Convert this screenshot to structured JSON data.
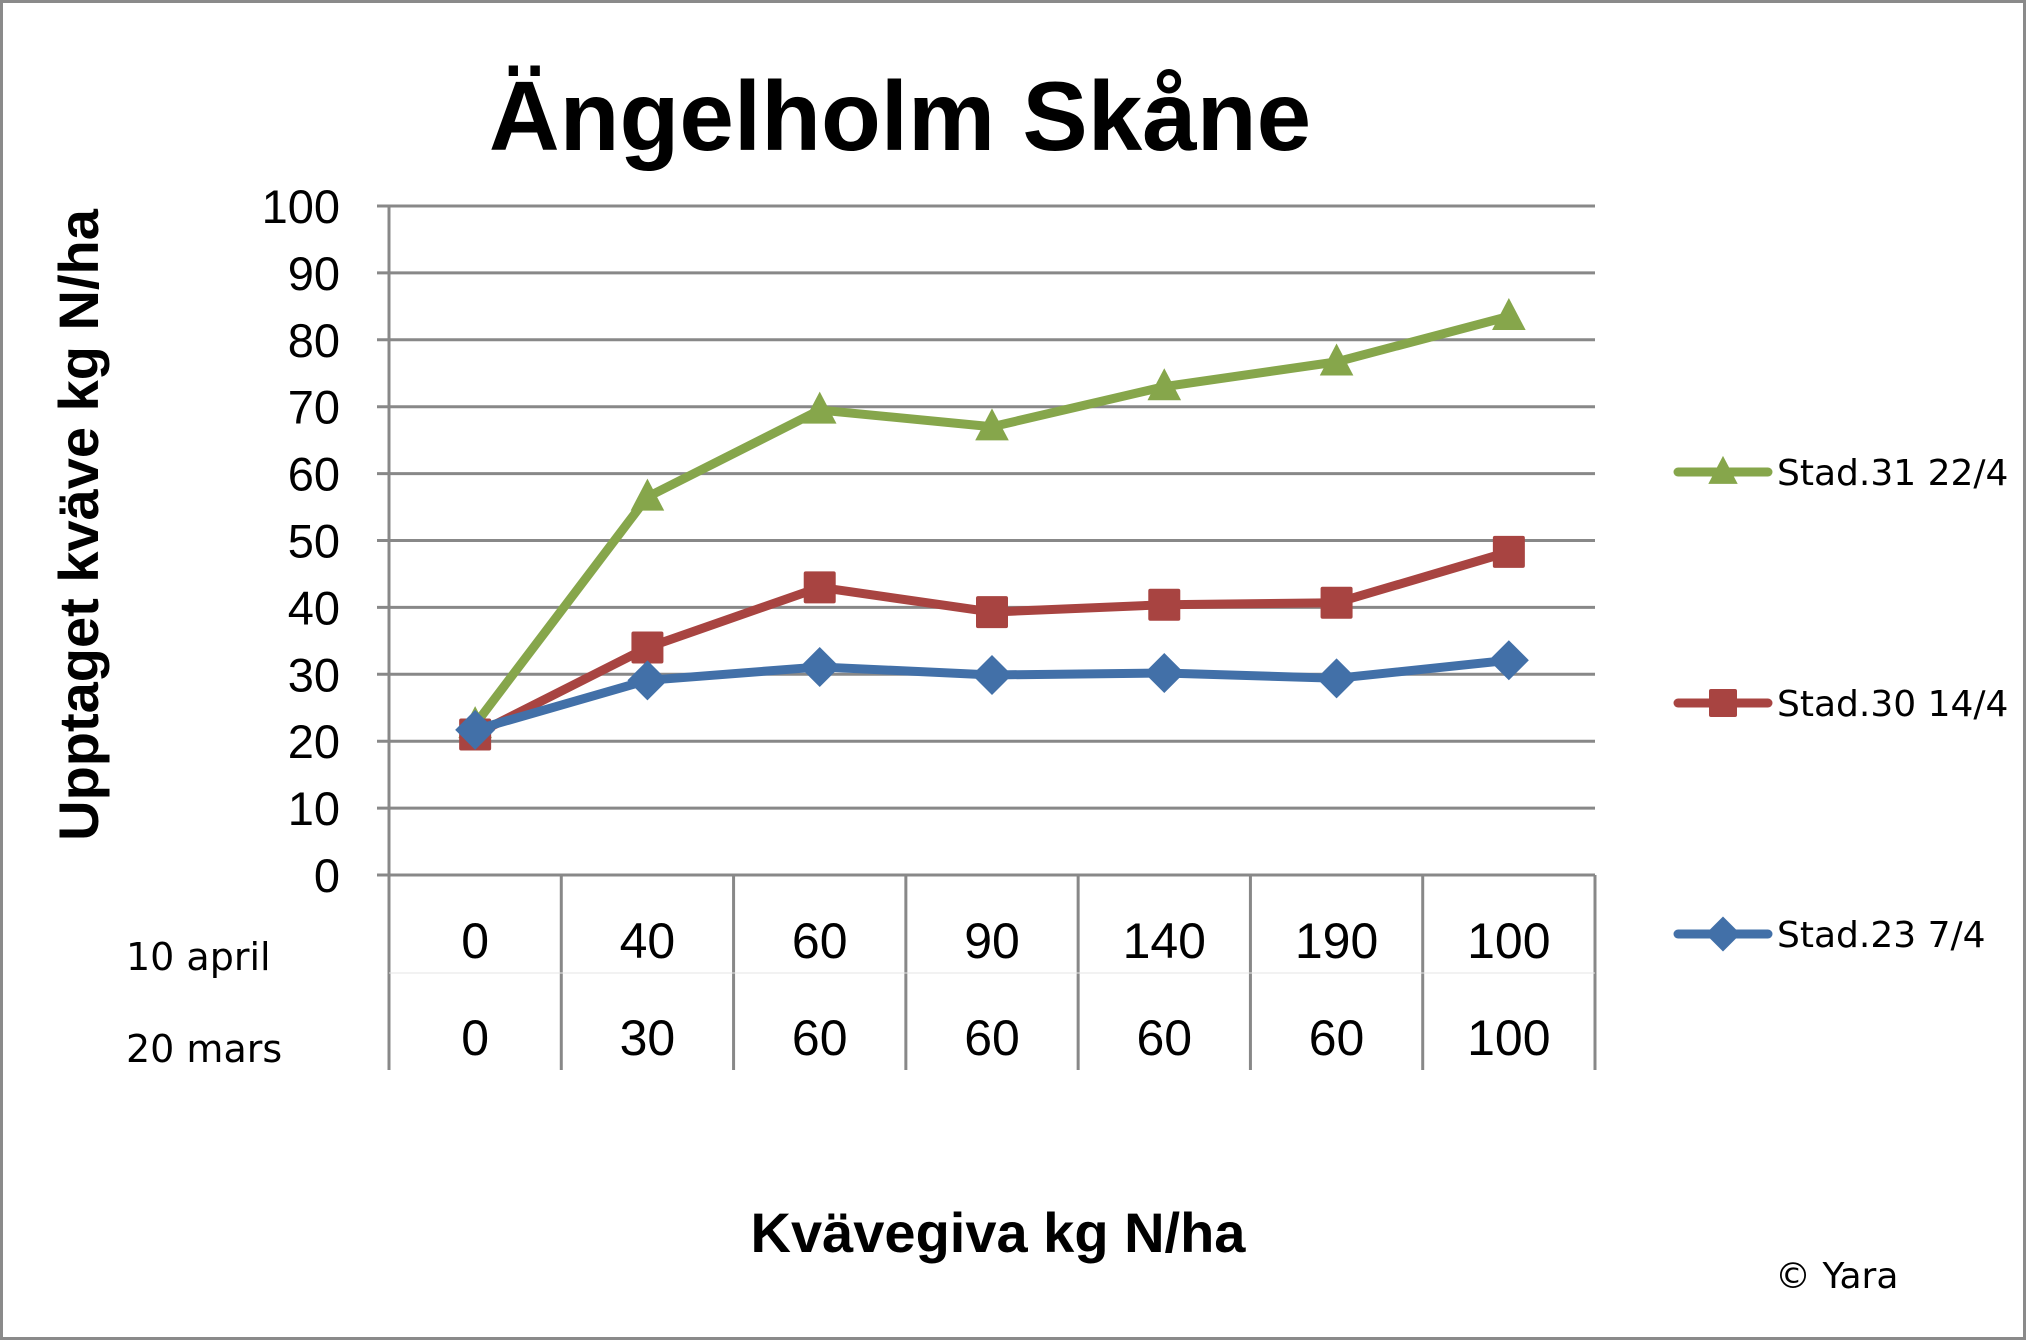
{
  "chart_data": {
    "type": "line",
    "title": "Ängelholm Skåne",
    "xlabel": "Kvävegiva kg N/ha",
    "ylabel": "Upptaget kväve kg N/ha",
    "ylim": [
      0,
      100
    ],
    "yticks": [
      0,
      10,
      20,
      30,
      40,
      50,
      60,
      70,
      80,
      90,
      100
    ],
    "grid": true,
    "legend_position": "right",
    "category_rows": [
      {
        "label": "10 april",
        "values": [
          "0",
          "40",
          "60",
          "90",
          "140",
          "190",
          "100"
        ]
      },
      {
        "label": "20 mars",
        "values": [
          "0",
          "30",
          "60",
          "60",
          "60",
          "60",
          "100"
        ]
      }
    ],
    "categories": [
      "0 / 0",
      "40 / 30",
      "60 / 60",
      "90 / 60",
      "140 / 60",
      "190 / 60",
      "100 / 100"
    ],
    "series": [
      {
        "name": "Stad.31 22/4",
        "marker": "triangle",
        "color": "#86a64b",
        "values": [
          22.5,
          56.5,
          69.5,
          67,
          73,
          76.7,
          83.5
        ]
      },
      {
        "name": "Stad.30 14/4",
        "marker": "square",
        "color": "#a84441",
        "values": [
          21,
          34,
          43,
          39.3,
          40.4,
          40.7,
          48.3
        ]
      },
      {
        "name": "Stad.23 7/4",
        "marker": "diamond",
        "color": "#4270a8",
        "values": [
          21.7,
          29.1,
          31.1,
          29.9,
          30.2,
          29.4,
          32.1
        ]
      }
    ],
    "annotations": [
      "© Yara"
    ]
  },
  "labels": {
    "title": "Ängelholm Skåne",
    "ylabel": "Upptaget kväve kg N/ha",
    "xlabel": "Kvävegiva kg N/ha",
    "row1_label": "10 april",
    "row2_label": "20 mars",
    "copyright": "© Yara"
  },
  "colors": {
    "grid": "#888888",
    "frame": "#8a8a8a"
  }
}
